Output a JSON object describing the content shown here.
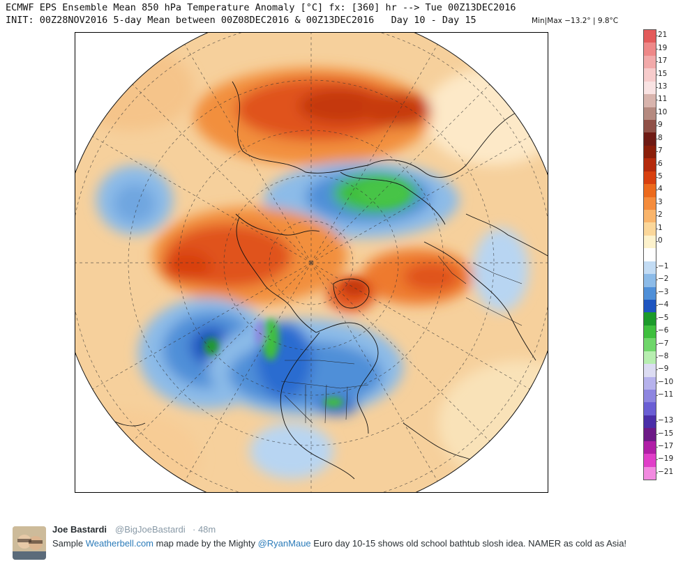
{
  "header": {
    "line1": "ECMWF EPS Ensemble Mean 850 hPa Temperature Anomaly [°C] fx: [360] hr --> Tue 00Z13DEC2016",
    "line2": "INIT: 00Z28NOV2016 5-day Mean between 00Z08DEC2016 & 00Z13DEC2016   Day 10 - Day 15",
    "minmax": "Min|Max −13.2° | 9.8°C"
  },
  "colorbar": {
    "labels": [
      "21",
      "19",
      "17",
      "15",
      "13",
      "11",
      "10",
      "9",
      "8",
      "7",
      "6",
      "5",
      "4",
      "3",
      "2",
      "1",
      "0",
      "−1",
      "−2",
      "−3",
      "−4",
      "−5",
      "−6",
      "−7",
      "−8",
      "−9",
      "−10",
      "−11",
      "−13",
      "−15",
      "−17",
      "−19",
      "−21"
    ],
    "colors": [
      "#e35b5b",
      "#ee8888",
      "#f2aaaa",
      "#f7cccc",
      "#f9e3e3",
      "#d8b4ad",
      "#b58a80",
      "#8f5047",
      "#6e1a14",
      "#8a1e0a",
      "#b42a0c",
      "#d8400f",
      "#ec6a1d",
      "#f58c3c",
      "#f9b56c",
      "#fbd79a",
      "#fdf2cc",
      "#ffffff",
      "#c3dcf4",
      "#8cbbe8",
      "#4f8fd8",
      "#1f55c0",
      "#1c9a2a",
      "#3fbf3e",
      "#6fd66a",
      "#b7eeb0",
      "#dcdcf2",
      "#b6b2ec",
      "#8e86e0",
      "#6a5ed4",
      "#4a2ea8",
      "#6d1a86",
      "#b01ea6",
      "#e03ec8",
      "#f28ae0"
    ],
    "level_order": "top (21) to bottom (-21)"
  },
  "map": {
    "projection": "polar stereographic, North Pole centered",
    "field": "850 hPa temperature anomaly (°C)",
    "features": [
      "warm anomaly over Siberia/Asia",
      "warm anomaly over Alaska and Greenland",
      "cold anomaly over North America",
      "cold anomaly over North Pacific",
      "cold anomaly over central Asia / Arctic"
    ]
  },
  "tweet": {
    "name": "Joe Bastardi",
    "handle": "@BigJoeBastardi",
    "time": "· 48m",
    "text_parts": [
      {
        "t": "Sample ",
        "link": false
      },
      {
        "t": "Weatherbell.com",
        "link": true
      },
      {
        "t": " map made by the Mighty ",
        "link": false
      },
      {
        "t": "@RyanMaue",
        "link": true
      },
      {
        "t": "  Euro day 10-15 shows old school bathtub slosh idea. NAMER  as cold as Asia!",
        "link": false
      }
    ],
    "link_color": "#2b7bb9"
  }
}
